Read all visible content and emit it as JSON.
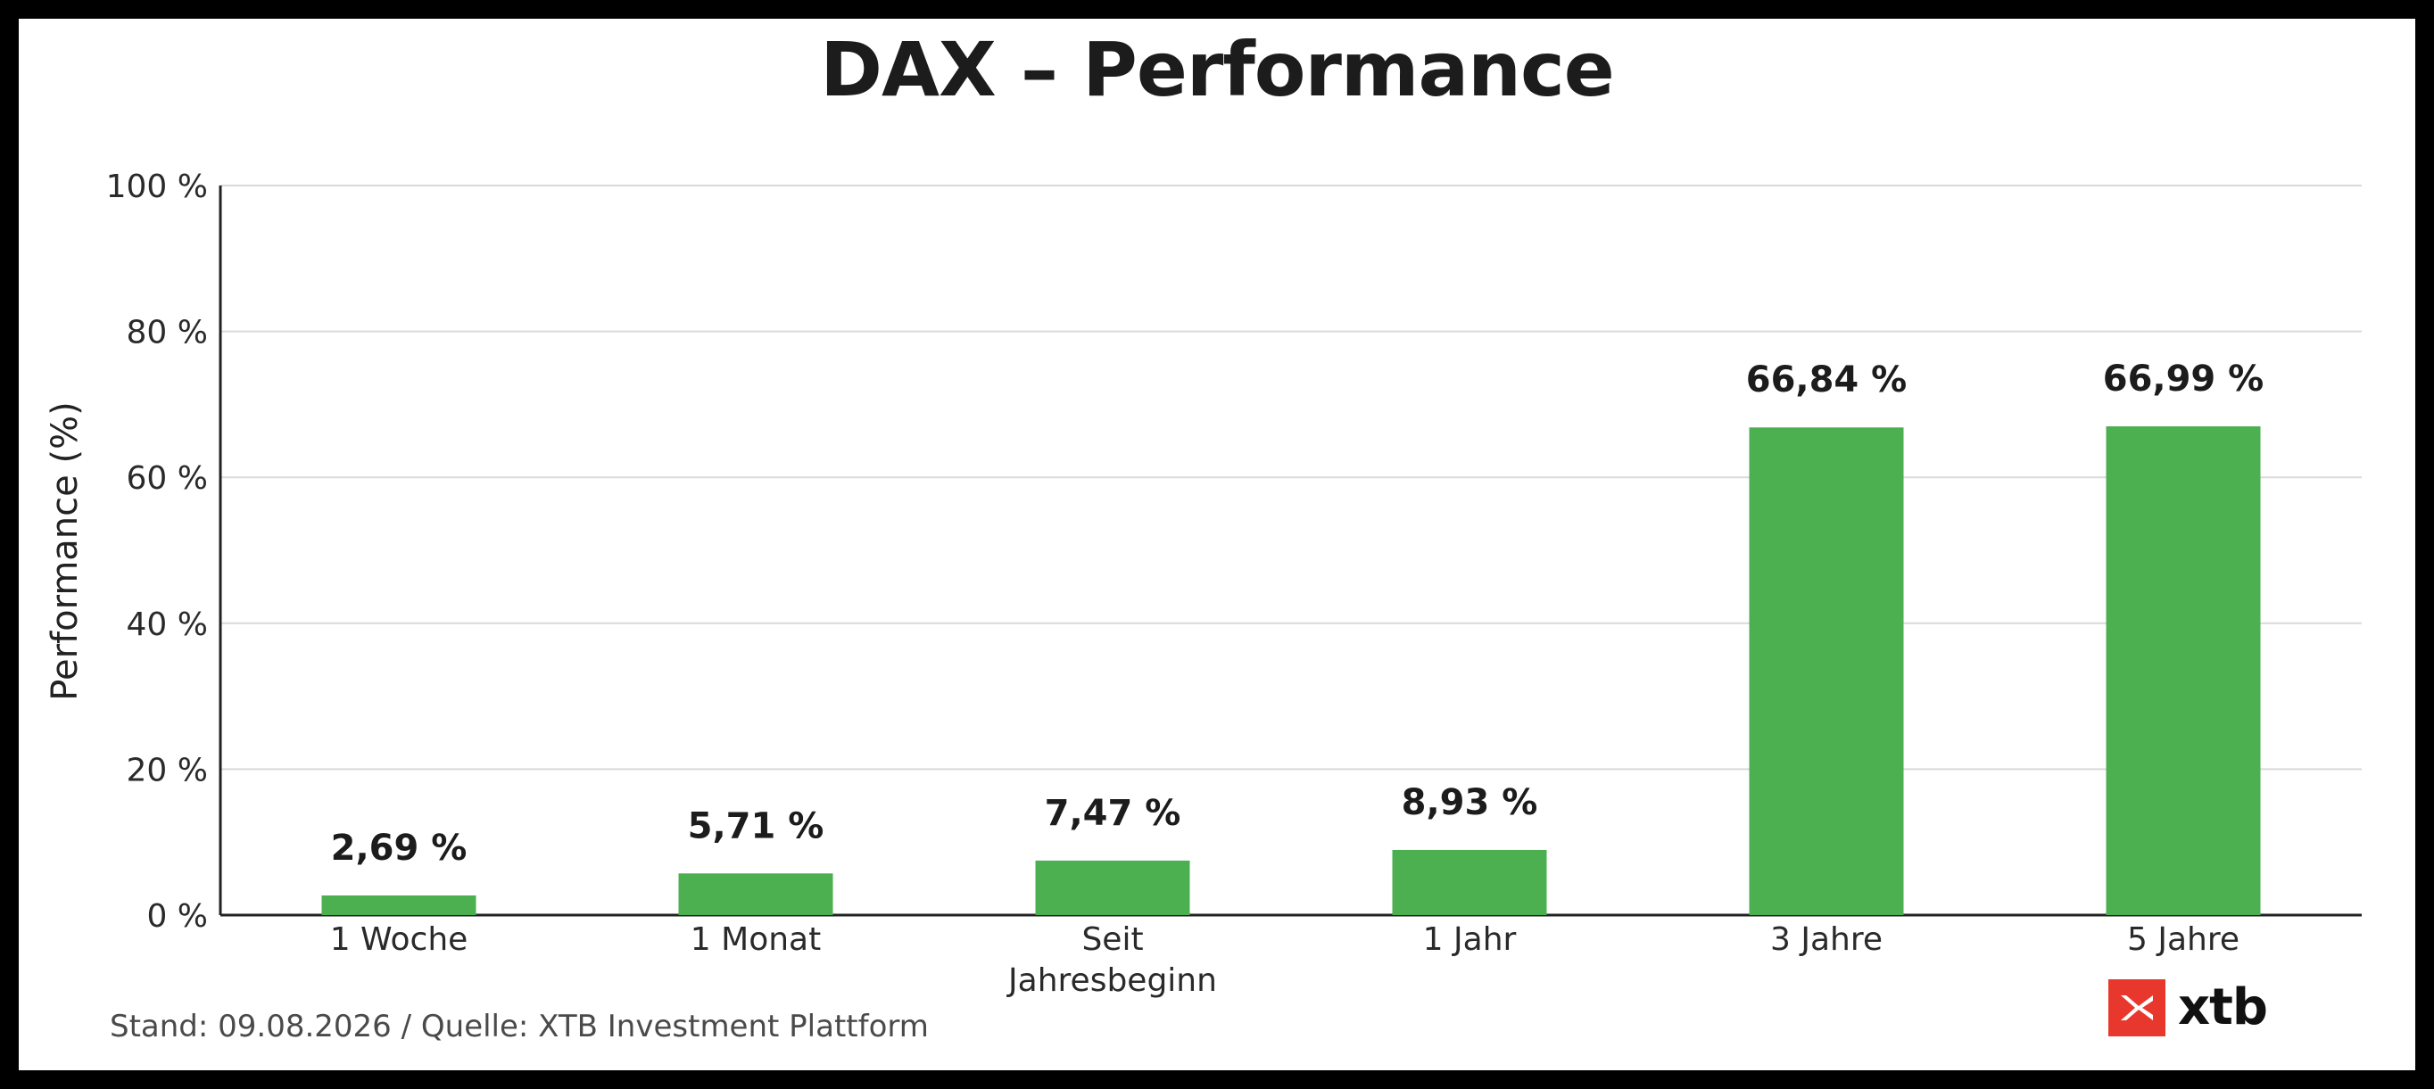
{
  "chart_data": {
    "type": "bar",
    "title": "DAX – Performance",
    "ylabel": "Performance (%)",
    "xlabel": "",
    "categories": [
      "1 Woche",
      "1 Monat",
      "Seit Jahresbeginn",
      "1 Jahr",
      "3 Jahre",
      "5 Jahre"
    ],
    "category_lines": [
      [
        "1 Woche"
      ],
      [
        "1 Monat"
      ],
      [
        "Seit",
        "Jahresbeginn"
      ],
      [
        "1 Jahr"
      ],
      [
        "3 Jahre"
      ],
      [
        "5 Jahre"
      ]
    ],
    "values": [
      2.69,
      5.71,
      7.47,
      8.93,
      66.84,
      66.99
    ],
    "value_labels": [
      "2,69 %",
      "5,71 %",
      "7,47 %",
      "8,93 %",
      "66,84 %",
      "66,99 %"
    ],
    "ylim": [
      0,
      100
    ],
    "yticks": [
      0,
      20,
      40,
      60,
      80,
      100
    ],
    "ytick_labels": [
      "0 %",
      "20 %",
      "40 %",
      "60 %",
      "80 %",
      "100 %"
    ],
    "grid": true,
    "bar_color": "#4caf50"
  },
  "footer": {
    "source": "Stand: 09.08.2026 / Quelle: XTB Investment Plattform"
  },
  "logo": {
    "text": "xtb",
    "icon": "xtb-logo-icon",
    "color": "#e8382d"
  }
}
